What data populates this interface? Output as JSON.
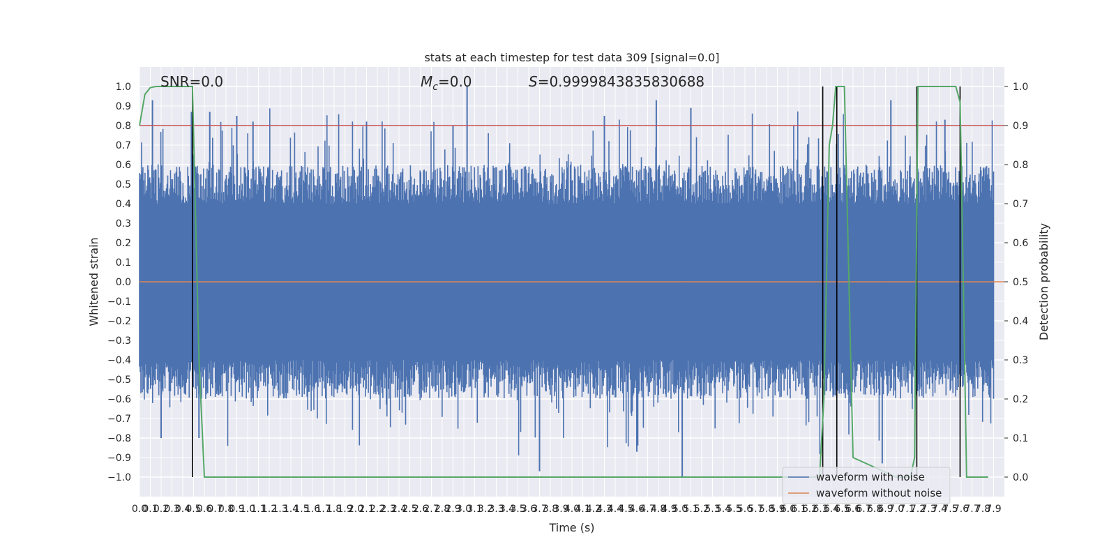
{
  "chart_data": {
    "type": "line",
    "title": "stats at each timestep for test data 309 [signal=0.0]",
    "xlabel": "Time (s)",
    "ylabel": "Whitened strain",
    "y2label": "Detection probability",
    "xlim": [
      0.0,
      7.9
    ],
    "ylim": [
      -1.1,
      1.1
    ],
    "y2lim": [
      -0.05,
      1.05
    ],
    "x_ticks": [
      "0.0",
      "0.1",
      "0.2",
      "0.3",
      "0.4",
      "0.5",
      "0.6",
      "0.7",
      "0.8",
      "0.9",
      "1.0",
      "1.1",
      "1.2",
      "1.3",
      "1.4",
      "1.5",
      "1.6",
      "1.7",
      "1.8",
      "1.9",
      "2.0",
      "2.1",
      "2.2",
      "2.3",
      "2.4",
      "2.5",
      "2.6",
      "2.7",
      "2.8",
      "2.9",
      "3.0",
      "3.1",
      "3.2",
      "3.3",
      "3.4",
      "3.5",
      "3.6",
      "3.7",
      "3.8",
      "3.9",
      "4.0",
      "4.1",
      "4.2",
      "4.3",
      "4.4",
      "4.5",
      "4.6",
      "4.7",
      "4.8",
      "4.9",
      "5.0",
      "5.1",
      "5.2",
      "5.3",
      "5.4",
      "5.5",
      "5.6",
      "5.7",
      "5.8",
      "5.9",
      "6.0",
      "6.1",
      "6.2",
      "6.3",
      "6.4",
      "6.5",
      "6.6",
      "6.7",
      "6.8",
      "6.9",
      "7.0",
      "7.1",
      "7.2",
      "7.3",
      "7.4",
      "7.5",
      "7.6",
      "7.7",
      "7.8",
      "7.9"
    ],
    "y_ticks": [
      "1.0",
      "0.9",
      "0.8",
      "0.7",
      "0.6",
      "0.5",
      "0.4",
      "0.3",
      "0.2",
      "0.1",
      "0.0",
      "−0.1",
      "−0.2",
      "−0.3",
      "−0.4",
      "−0.5",
      "−0.6",
      "−0.7",
      "−0.8",
      "−0.9",
      "−1.0"
    ],
    "y2_ticks": [
      "1.0",
      "0.9",
      "0.8",
      "0.7",
      "0.6",
      "0.5",
      "0.4",
      "0.3",
      "0.2",
      "0.1",
      "0.0"
    ],
    "annotations": {
      "snr": "SNR=0.0",
      "mc_symbol": "M",
      "mc_sub": "c",
      "mc_value": "=0.0",
      "s_symbol": "S",
      "s_value": "=0.9999843835830688"
    },
    "threshold": 0.8,
    "noise_envelope": {
      "typical_amplitude": 0.4,
      "max": 1.0,
      "min": -1.0
    },
    "series": [
      {
        "name": "waveform with noise",
        "color": "#4c72b0"
      },
      {
        "name": "waveform without noise",
        "color": "#dd8452",
        "values": [
          0.0,
          0.0
        ]
      },
      {
        "color": "#55a868",
        "x": [
          0.0,
          0.05,
          0.1,
          0.15,
          0.2,
          0.3,
          0.4,
          0.45,
          0.49,
          0.55,
          0.6,
          0.7,
          1.0,
          2.0,
          3.0,
          4.0,
          5.0,
          6.0,
          6.25,
          6.29,
          6.33,
          6.38,
          6.41,
          6.44,
          6.47,
          6.52,
          6.6,
          7.0,
          7.1,
          7.13,
          7.17,
          7.2,
          7.3,
          7.4,
          7.5,
          7.55,
          7.59,
          7.62,
          7.65,
          7.7,
          7.8,
          7.85
        ],
        "values": [
          0.9,
          0.98,
          0.997,
          1.0,
          1.0,
          1.0,
          1.0,
          1.0,
          1.0,
          0.3,
          0.0,
          0.0,
          0.0,
          0.0,
          0.0,
          0.0,
          0.0,
          0.0,
          0.0,
          0.0,
          0.2,
          0.85,
          0.9,
          1.0,
          1.0,
          1.0,
          0.05,
          0.0,
          0.0,
          0.0,
          0.05,
          1.0,
          1.0,
          1.0,
          1.0,
          1.0,
          0.96,
          0.5,
          0.0,
          0.0,
          0.0,
          0.0
        ]
      }
    ],
    "vlines_x": [
      0.49,
      6.32,
      6.45,
      7.19,
      7.59
    ],
    "spikes": [
      [
        0.12,
        0.93
      ],
      [
        0.48,
        0.87
      ],
      [
        0.65,
        0.87
      ],
      [
        0.9,
        0.85
      ],
      [
        1.05,
        0.82
      ],
      [
        2.1,
        0.82
      ],
      [
        2.9,
        0.8
      ],
      [
        3.03,
        1.0
      ],
      [
        4.3,
        0.85
      ],
      [
        4.78,
        0.93
      ],
      [
        5.1,
        0.89
      ],
      [
        6.95,
        0.93
      ],
      [
        7.45,
        0.83
      ],
      [
        3.7,
        -0.97
      ],
      [
        5.02,
        -1.0
      ],
      [
        4.6,
        -0.87
      ],
      [
        6.87,
        -0.93
      ],
      [
        0.2,
        -0.8
      ],
      [
        0.55,
        -0.8
      ]
    ],
    "grid": true,
    "legend": "bottom-right",
    "colors": {
      "background": "#eaeaf2",
      "grid": "#ffffff",
      "noise": "#4c72b0",
      "clean": "#dd8452",
      "probability": "#55a868",
      "threshold": "#c44e52",
      "markers": "#000000"
    }
  }
}
